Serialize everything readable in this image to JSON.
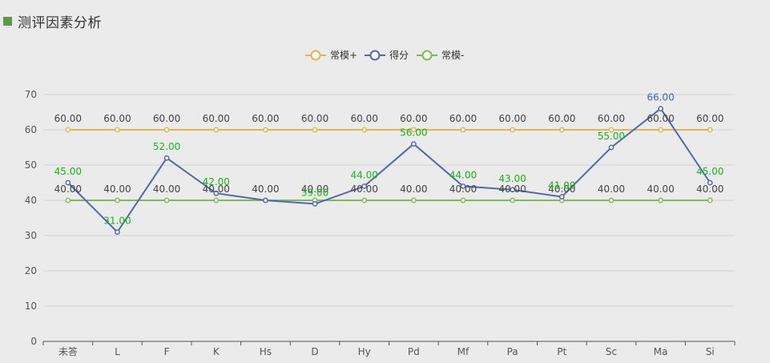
{
  "page": {
    "title": "测评因素分析"
  },
  "colors": {
    "upper": "#e3b44f",
    "score": "#5069ad",
    "lower": "#7bbd52",
    "label_green": "#18b418",
    "label_gray": "#444444",
    "label_blue": "#3d65b8",
    "grid": "#d3d3d3",
    "axis": "#555555"
  },
  "chart_data": {
    "type": "line",
    "categories": [
      "未答",
      "L",
      "F",
      "K",
      "Hs",
      "D",
      "Hy",
      "Pd",
      "Mf",
      "Pa",
      "Pt",
      "Sc",
      "Ma",
      "Si"
    ],
    "ylim": [
      0,
      70
    ],
    "yticks": [
      0,
      10,
      20,
      30,
      40,
      50,
      60,
      70
    ],
    "grid": true,
    "legend_position": "top-center",
    "series": [
      {
        "name": "常模+",
        "key": "upper",
        "values": [
          60,
          60,
          60,
          60,
          60,
          60,
          60,
          60,
          60,
          60,
          60,
          60,
          60,
          60
        ],
        "labels": [
          "60.00",
          "60.00",
          "60.00",
          "60.00",
          "60.00",
          "60.00",
          "60.00",
          "60.00",
          "60.00",
          "60.00",
          "60.00",
          "60.00",
          "60.00",
          "60.00"
        ]
      },
      {
        "name": "得分",
        "key": "score",
        "values": [
          45,
          31,
          52,
          42,
          40,
          39,
          44,
          56,
          44,
          43,
          41,
          55,
          66,
          45
        ],
        "labels": [
          "45.00",
          "31.00",
          "52.00",
          "42.00",
          "",
          "39.00",
          "44.00",
          "56.00",
          "44.00",
          "43.00",
          "41.00",
          "55.00",
          "66.00",
          "45.00"
        ]
      },
      {
        "name": "常模-",
        "key": "lower",
        "values": [
          40,
          40,
          40,
          40,
          40,
          40,
          40,
          40,
          40,
          40,
          40,
          40,
          40,
          40
        ],
        "labels": [
          "40.00",
          "40.00",
          "40.00",
          "40.00",
          "40.00",
          "40.00",
          "40.00",
          "40.00",
          "40.00",
          "40.00",
          "40.00",
          "40.00",
          "40.00",
          "40.00"
        ]
      }
    ]
  }
}
